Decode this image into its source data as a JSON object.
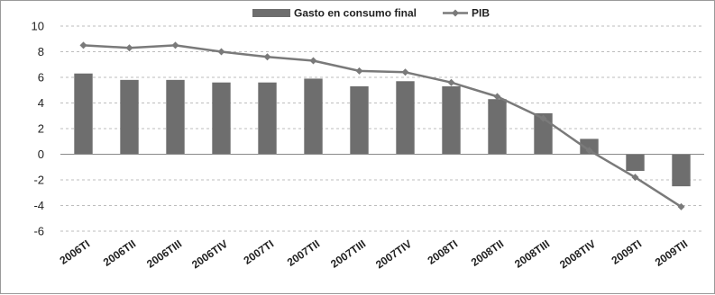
{
  "chart_data": {
    "type": "bar",
    "title": "",
    "xlabel": "",
    "ylabel": "",
    "categories": [
      "2006TI",
      "2006TII",
      "2006TIII",
      "2006TIV",
      "2007TI",
      "2007TII",
      "2007TIII",
      "2007TIV",
      "2008TI",
      "2008TII",
      "2008TIII",
      "2008TIV",
      "2009TI",
      "2009TII"
    ],
    "series": [
      {
        "name": "Gasto en consumo final",
        "type": "bar",
        "color": "#6e6e6e",
        "values": [
          6.3,
          5.8,
          5.8,
          5.6,
          5.6,
          5.9,
          5.3,
          5.7,
          5.3,
          4.3,
          3.2,
          1.2,
          -1.3,
          -2.5
        ]
      },
      {
        "name": "PIB",
        "type": "line",
        "color": "#7a7a7a",
        "values": [
          8.5,
          8.3,
          8.5,
          8.0,
          7.6,
          7.3,
          6.5,
          6.4,
          5.6,
          4.5,
          2.8,
          0.3,
          -1.8,
          -4.1
        ]
      }
    ],
    "ylim": [
      -6,
      10
    ],
    "yticks": [
      -6,
      -4,
      -2,
      0,
      2,
      4,
      6,
      8,
      10
    ],
    "grid": true,
    "legend_position": "top"
  }
}
